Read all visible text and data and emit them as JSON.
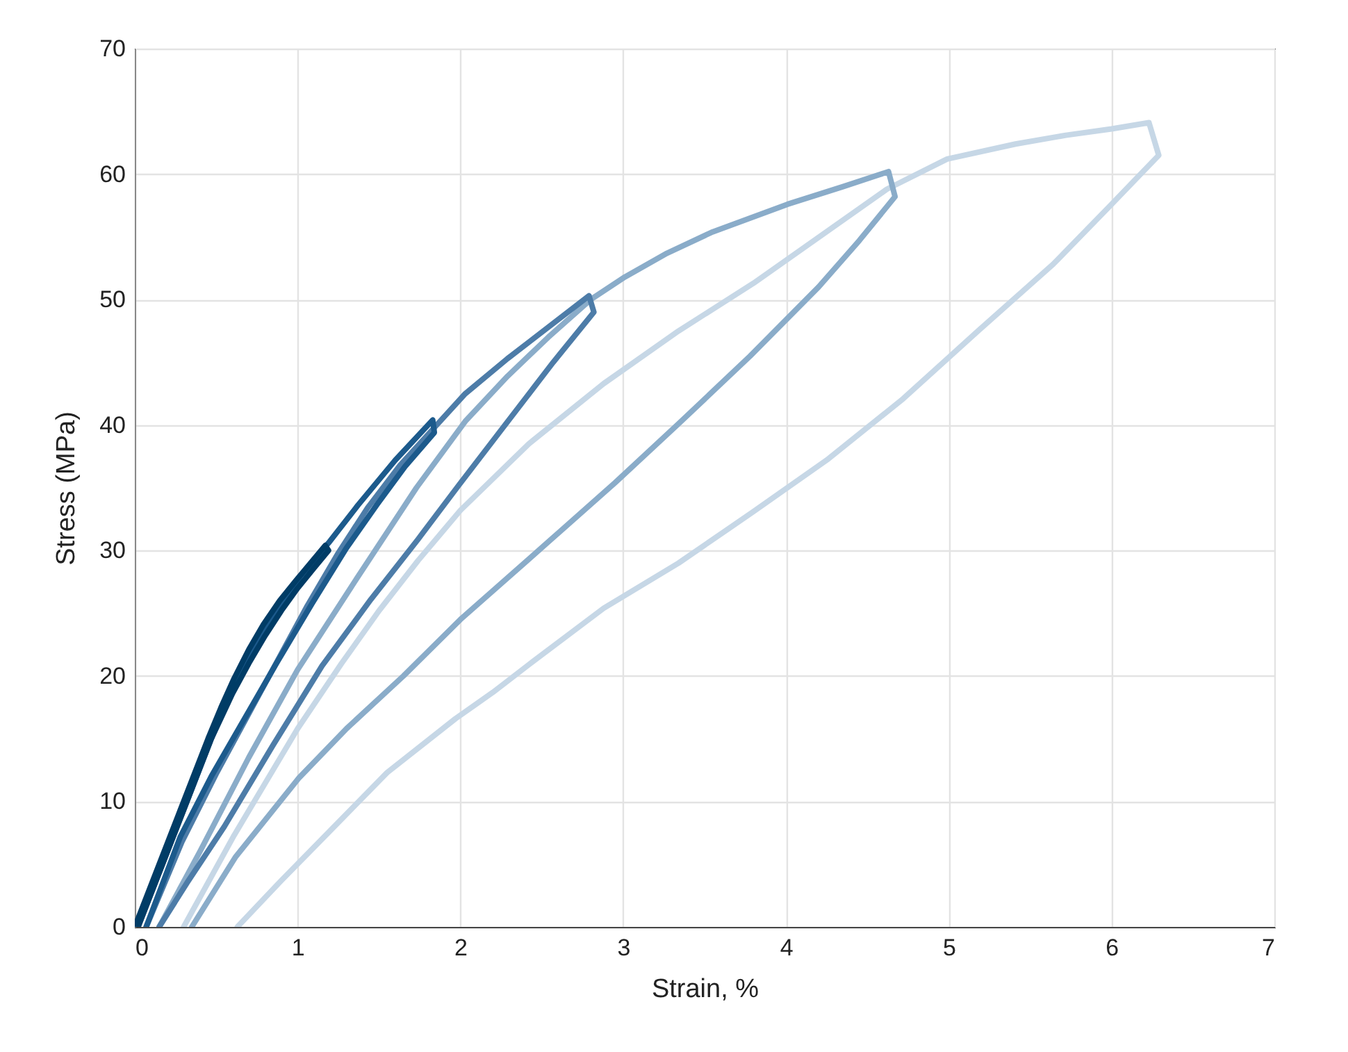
{
  "chart_data": {
    "type": "line",
    "xlabel": "Strain, %",
    "ylabel": "Stress (MPa)",
    "xlim": [
      0,
      7
    ],
    "ylim": [
      0,
      70
    ],
    "xticks": [
      0,
      1,
      2,
      3,
      4,
      5,
      6,
      7
    ],
    "yticks": [
      0,
      10,
      20,
      30,
      40,
      50,
      60,
      70
    ],
    "grid": true,
    "series": [
      {
        "color": "#c6d7e6",
        "x": [
          0.3,
          0.61,
          1.0,
          1.27,
          1.5,
          1.74,
          2.0,
          2.42,
          2.88,
          3.34,
          3.8,
          4.26,
          4.62,
          4.99,
          5.41,
          5.72,
          6.0,
          6.23,
          6.29,
          6.0,
          5.64,
          5.18,
          4.72,
          4.26,
          3.8,
          3.34,
          2.88,
          2.42,
          2.2,
          1.97,
          1.55,
          1.18,
          0.9,
          0.63
        ],
        "values": [
          0,
          7.3,
          15.8,
          21,
          25.2,
          29.2,
          33.2,
          38.5,
          43.3,
          47.5,
          51.3,
          55.5,
          58.8,
          61.2,
          62.4,
          63.1,
          63.6,
          64.1,
          61.5,
          57.6,
          52.8,
          47.5,
          42.1,
          37.3,
          33.1,
          29,
          25.4,
          20.9,
          18.7,
          16.6,
          12.3,
          7.4,
          3.7,
          0
        ]
      },
      {
        "color": "#8aacc9",
        "x": [
          0.15,
          0.4,
          0.7,
          1.0,
          1.35,
          1.73,
          2.03,
          2.29,
          2.54,
          2.8,
          3.01,
          3.27,
          3.55,
          4.01,
          4.35,
          4.63,
          4.67,
          4.45,
          4.2,
          3.78,
          3.34,
          2.95,
          2.55,
          2.0,
          1.65,
          1.3,
          1.01,
          0.62,
          0.35
        ],
        "values": [
          0,
          6,
          13.5,
          20.5,
          27.5,
          35,
          40.3,
          43.9,
          47,
          50,
          51.8,
          53.7,
          55.4,
          57.6,
          59,
          60.2,
          58.2,
          54.7,
          51,
          45.5,
          40.1,
          35.4,
          30.8,
          24.5,
          20,
          15.8,
          11.9,
          5.6,
          0
        ]
      },
      {
        "color": "#4d7ca8",
        "x": [
          0.07,
          0.29,
          0.5,
          0.7,
          0.88,
          1.06,
          1.25,
          1.43,
          1.63,
          1.84,
          2.03,
          2.29,
          2.54,
          2.79,
          2.82,
          2.57,
          2.28,
          1.99,
          1.74,
          1.45,
          1.15,
          0.85,
          0.55,
          0.32,
          0.15
        ],
        "values": [
          0,
          6.8,
          12.2,
          17,
          21.3,
          25.6,
          29.8,
          33.4,
          36.8,
          39.8,
          42.5,
          45.3,
          47.8,
          50.3,
          49,
          45,
          40.1,
          35.2,
          30.9,
          26.1,
          20.8,
          14.5,
          8,
          3.5,
          0
        ]
      },
      {
        "color": "#1c5a8c",
        "x": [
          0.02,
          0.17,
          0.32,
          0.47,
          0.63,
          0.74,
          0.86,
          1.02,
          1.19,
          1.37,
          1.6,
          1.83,
          1.84,
          1.66,
          1.49,
          1.3,
          1.09,
          0.87,
          0.67,
          0.47,
          0.28,
          0.07
        ],
        "values": [
          0,
          5,
          10,
          15,
          20,
          22.7,
          25.1,
          28,
          30.6,
          33.6,
          37.2,
          40.4,
          39.4,
          36.7,
          33.7,
          30.2,
          25.8,
          21,
          16.5,
          12,
          7.2,
          0
        ]
      },
      {
        "color": "#003c66",
        "x": [
          0,
          0.15,
          0.3,
          0.45,
          0.53,
          0.61,
          0.7,
          0.79,
          0.89,
          0.99,
          1.08,
          1.17,
          1.19,
          1.1,
          1.0,
          0.9,
          0.8,
          0.7,
          0.6,
          0.47,
          0.32,
          0.17,
          0.02
        ],
        "values": [
          0,
          5,
          10,
          15,
          17.5,
          19.8,
          22.1,
          24.1,
          26,
          27.6,
          29,
          30.4,
          30,
          28.6,
          27,
          25.2,
          23.2,
          21,
          18.6,
          15,
          10,
          5,
          0
        ]
      }
    ]
  }
}
